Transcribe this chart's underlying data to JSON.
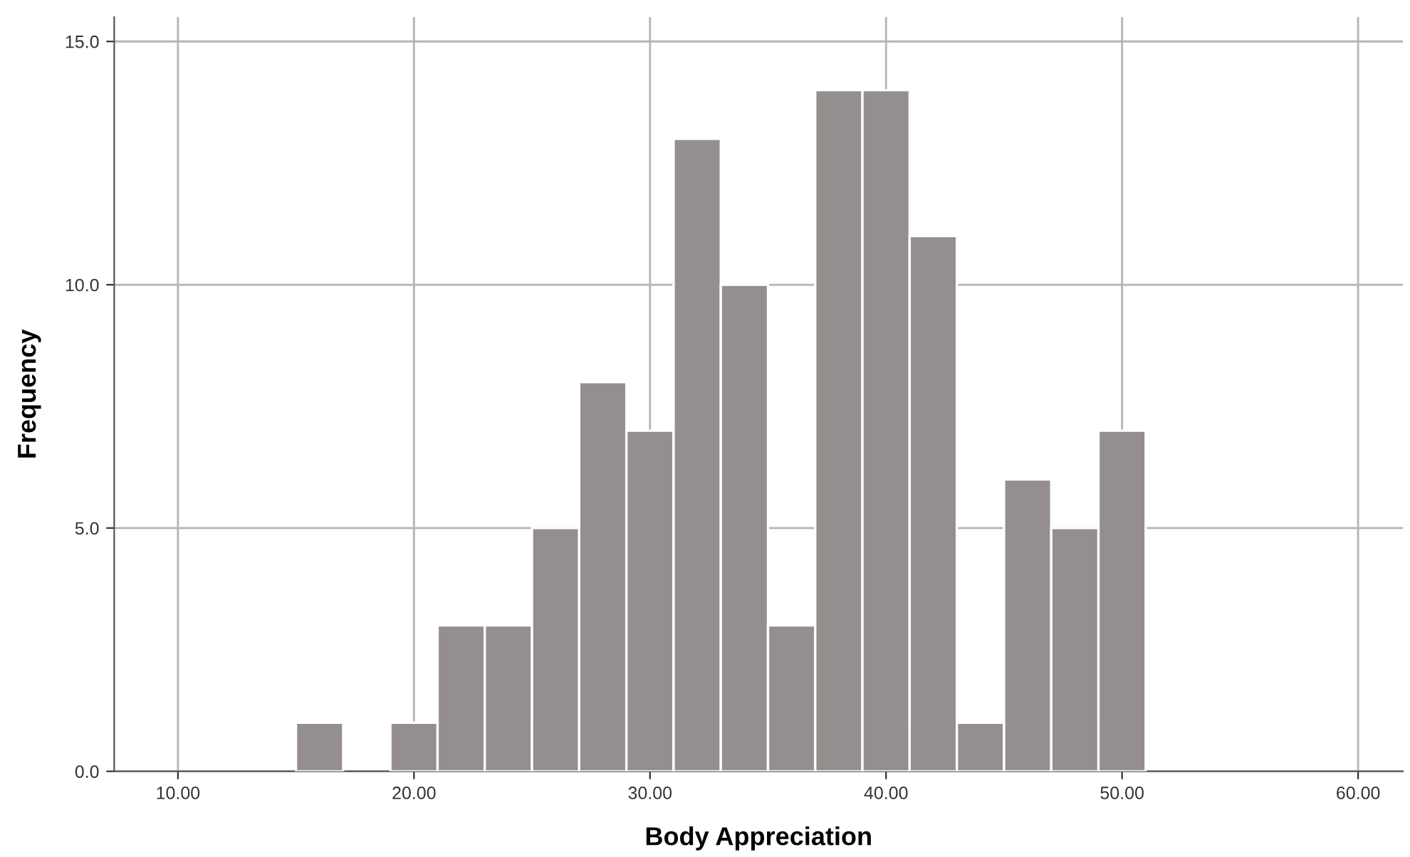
{
  "chart_data": {
    "type": "histogram",
    "xlabel": "Body Appreciation",
    "ylabel": "Frequency",
    "bins": [
      15,
      17,
      19,
      21,
      23,
      25,
      27,
      29,
      31,
      33,
      35,
      37,
      39,
      41,
      43,
      45,
      47,
      49,
      51
    ],
    "values": [
      1,
      0,
      1,
      3,
      3,
      5,
      8,
      7,
      13,
      10,
      3,
      14,
      14,
      11,
      1,
      6,
      5,
      7
    ],
    "color": "#948f8e",
    "xlim": [
      7.3,
      61.9
    ],
    "ylim": [
      0,
      15.5
    ],
    "xticks": [
      {
        "value": 10,
        "label": "10.00"
      },
      {
        "value": 20,
        "label": "20.00"
      },
      {
        "value": 30,
        "label": "30.00"
      },
      {
        "value": 40,
        "label": "40.00"
      },
      {
        "value": 50,
        "label": "50.00"
      },
      {
        "value": 60,
        "label": "60.00"
      }
    ],
    "yticks": [
      {
        "value": 0,
        "label": "0.0"
      },
      {
        "value": 5,
        "label": "5.0"
      },
      {
        "value": 10,
        "label": "10.0"
      },
      {
        "value": 15,
        "label": "15.0"
      }
    ],
    "grid": true
  }
}
